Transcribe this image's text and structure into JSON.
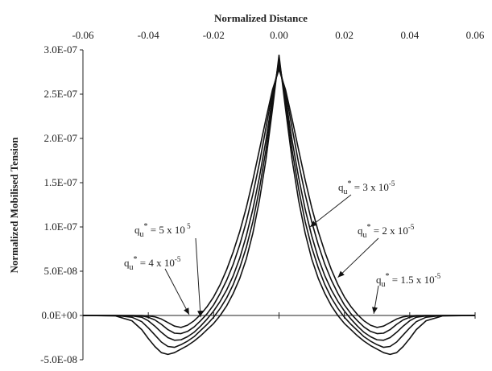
{
  "chart_data": {
    "type": "line",
    "xlabel": "Normalized Distance",
    "ylabel": "Normalized  Mobilised Tension",
    "xlim": [
      -0.06,
      0.06
    ],
    "ylim": [
      -5e-08,
      3e-07
    ],
    "x_axis_position": "top",
    "grid": false,
    "x_ticks": [
      {
        "value": -0.06,
        "label": "-0.06"
      },
      {
        "value": -0.04,
        "label": "-0.04"
      },
      {
        "value": -0.02,
        "label": "-0.02"
      },
      {
        "value": 0.0,
        "label": "0.00"
      },
      {
        "value": 0.02,
        "label": "0.02"
      },
      {
        "value": 0.04,
        "label": "0.04"
      },
      {
        "value": 0.06,
        "label": "0.06"
      }
    ],
    "y_ticks": [
      {
        "value": 3e-07,
        "label": "3.0E-07"
      },
      {
        "value": 2.5e-07,
        "label": "2.5E-07"
      },
      {
        "value": 2e-07,
        "label": "2.0E-07"
      },
      {
        "value": 1.5e-07,
        "label": "1.5E-07"
      },
      {
        "value": 1e-07,
        "label": "1.0E-07"
      },
      {
        "value": 5e-08,
        "label": "5.0E-08"
      },
      {
        "value": 0.0,
        "label": "0.0E+00"
      },
      {
        "value": -5e-08,
        "label": "-5.0E-08"
      }
    ],
    "series": [
      {
        "annotation": {
          "base": "q",
          "sub": "u",
          "sup_star": "*",
          "text": " = 1.5 x 10",
          "exp": "-5",
          "arrow_to": [
            0.029,
            2e-09
          ]
        },
        "x": [
          0.0,
          0.002,
          0.004,
          0.006,
          0.008,
          0.01,
          0.012,
          0.014,
          0.016,
          0.018,
          0.02,
          0.022,
          0.024,
          0.026,
          0.028,
          0.03,
          0.032,
          0.034,
          0.036,
          0.038,
          0.04,
          0.042,
          0.045,
          0.05,
          0.06
        ],
        "y": [
          2.78e-07,
          2.55e-07,
          2.22e-07,
          1.87e-07,
          1.53e-07,
          1.22e-07,
          9.5e-08,
          7.2e-08,
          5.2e-08,
          3.5e-08,
          2.1e-08,
          1e-08,
          1e-09,
          -6e-09,
          -1.1e-08,
          -1.35e-08,
          -1.2e-08,
          -8e-09,
          -4e-09,
          -1.5e-09,
          -5e-10,
          0.0,
          0.0,
          0.0,
          0.0
        ]
      },
      {
        "annotation": {
          "base": "q",
          "sub": "u",
          "sup_star": "*",
          "text": " = 2 x 10",
          "exp": "-5",
          "arrow_to": [
            0.018,
            4.3e-08
          ]
        },
        "x": [
          0.0,
          0.002,
          0.004,
          0.006,
          0.008,
          0.01,
          0.012,
          0.014,
          0.016,
          0.018,
          0.02,
          0.022,
          0.024,
          0.026,
          0.028,
          0.03,
          0.032,
          0.034,
          0.036,
          0.038,
          0.04,
          0.042,
          0.045,
          0.05,
          0.06
        ],
        "y": [
          2.82e-07,
          2.52e-07,
          2.12e-07,
          1.72e-07,
          1.37e-07,
          1.06e-07,
          8e-08,
          5.8e-08,
          4e-08,
          2.5e-08,
          1.2e-08,
          2e-09,
          -6e-09,
          -1.3e-08,
          -1.8e-08,
          -2.05e-08,
          -2e-08,
          -1.6e-08,
          -1e-08,
          -5e-09,
          -2e-09,
          -5e-10,
          0.0,
          0.0,
          0.0
        ]
      },
      {
        "annotation": {
          "base": "q",
          "sub": "u",
          "sup_star": "*",
          "text": " = 3 x 10",
          "exp": "-5",
          "arrow_to": [
            0.0095,
            1e-07
          ]
        },
        "x": [
          0.0,
          0.002,
          0.004,
          0.006,
          0.008,
          0.01,
          0.012,
          0.014,
          0.016,
          0.018,
          0.02,
          0.022,
          0.024,
          0.026,
          0.028,
          0.03,
          0.032,
          0.034,
          0.036,
          0.038,
          0.04,
          0.042,
          0.045,
          0.05,
          0.06
        ],
        "y": [
          2.86e-07,
          2.46e-07,
          1.98e-07,
          1.56e-07,
          1.2e-07,
          9e-08,
          6.5e-08,
          4.5e-08,
          2.9e-08,
          1.6e-08,
          5e-09,
          -4e-09,
          -1.2e-08,
          -1.9e-08,
          -2.4e-08,
          -2.75e-08,
          -2.8e-08,
          -2.5e-08,
          -1.9e-08,
          -1.2e-08,
          -6e-09,
          -2e-09,
          -5e-10,
          0.0,
          0.0
        ]
      },
      {
        "annotation": {
          "base": "q",
          "sub": "u",
          "sup_star": "*",
          "text": " = 4 x 10",
          "exp": "-5",
          "arrow_to": [
            -0.0275,
            1e-09
          ]
        },
        "x": [
          0.0,
          0.002,
          0.004,
          0.006,
          0.008,
          0.01,
          0.012,
          0.014,
          0.016,
          0.018,
          0.02,
          0.022,
          0.024,
          0.026,
          0.028,
          0.03,
          0.032,
          0.034,
          0.036,
          0.038,
          0.04,
          0.042,
          0.045,
          0.05,
          0.06
        ],
        "y": [
          2.9e-07,
          2.4e-07,
          1.87e-07,
          1.43e-07,
          1.06e-07,
          7.7e-08,
          5.4e-08,
          3.5e-08,
          2e-08,
          8e-09,
          -2e-09,
          -1e-08,
          -1.7e-08,
          -2.4e-08,
          -2.9e-08,
          -3.3e-08,
          -3.6e-08,
          -3.5e-08,
          -3e-08,
          -2.2e-08,
          -1.4e-08,
          -7e-09,
          -2e-09,
          0.0,
          0.0
        ]
      },
      {
        "annotation": {
          "base": "q",
          "sub": "u",
          "sup_star": "*",
          "text": " = 5 x 10",
          "exp": " 5",
          "arrow_to": [
            -0.024,
            -2e-09
          ]
        },
        "x": [
          0.0,
          0.002,
          0.004,
          0.006,
          0.008,
          0.01,
          0.012,
          0.014,
          0.016,
          0.018,
          0.02,
          0.022,
          0.024,
          0.026,
          0.028,
          0.03,
          0.032,
          0.034,
          0.036,
          0.038,
          0.04,
          0.042,
          0.045,
          0.05,
          0.06
        ],
        "y": [
          2.94e-07,
          2.33e-07,
          1.76e-07,
          1.3e-07,
          9.3e-08,
          6.4e-08,
          4.2e-08,
          2.5e-08,
          1.1e-08,
          0.0,
          -9e-09,
          -1.6e-08,
          -2.3e-08,
          -2.9e-08,
          -3.4e-08,
          -3.8e-08,
          -4.2e-08,
          -4.4e-08,
          -4.2e-08,
          -3.5e-08,
          -2.6e-08,
          -1.6e-08,
          -6e-09,
          -5e-10,
          0.0
        ]
      }
    ],
    "symmetric_about_zero": true
  }
}
